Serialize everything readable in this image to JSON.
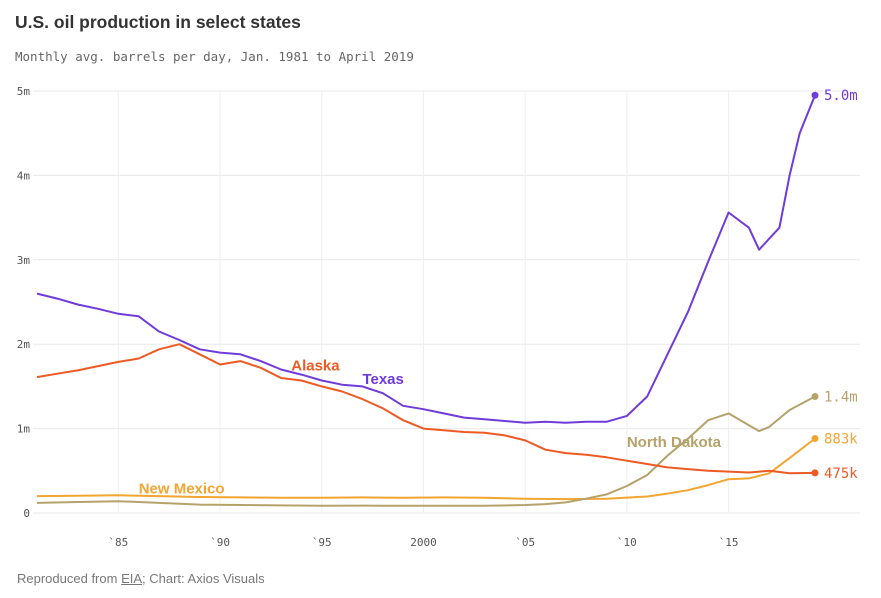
{
  "title": "U.S. oil production in select states",
  "subtitle": "Monthly avg. barrels per day, Jan. 1981 to April 2019",
  "footer": {
    "prefix": "Reproduced from ",
    "source_link": "EIA",
    "suffix": "; Chart: Axios Visuals"
  },
  "chart_data": {
    "type": "line",
    "title": "U.S. oil production in select states",
    "subtitle": "Monthly avg. barrels per day, Jan. 1981 to April 2019",
    "x_range": [
      1981.0,
      2019.25
    ],
    "y_range": [
      0,
      5000000
    ],
    "grid": true,
    "legend": "none (series labeled directly on lines)",
    "y_ticks": [
      {
        "value": 0,
        "label": "0"
      },
      {
        "value": 1000000,
        "label": "1m"
      },
      {
        "value": 2000000,
        "label": "2m"
      },
      {
        "value": 3000000,
        "label": "3m"
      },
      {
        "value": 4000000,
        "label": "4m"
      },
      {
        "value": 5000000,
        "label": "5m"
      }
    ],
    "x_ticks": [
      {
        "value": 1985,
        "label": "`85"
      },
      {
        "value": 1990,
        "label": "`90"
      },
      {
        "value": 1995,
        "label": "`95"
      },
      {
        "value": 2000,
        "label": "2000"
      },
      {
        "value": 2005,
        "label": "`05"
      },
      {
        "value": 2010,
        "label": "`10"
      },
      {
        "value": 2015,
        "label": "`15"
      }
    ],
    "series": [
      {
        "name": "Texas",
        "color": "#6f3bd9",
        "end_label": "5.0m",
        "label_year": 1997.0,
        "label_value": 1530000,
        "points": [
          [
            1981,
            2600000
          ],
          [
            1982,
            2540000
          ],
          [
            1983,
            2470000
          ],
          [
            1984,
            2420000
          ],
          [
            1985,
            2360000
          ],
          [
            1986,
            2330000
          ],
          [
            1987,
            2150000
          ],
          [
            1988,
            2050000
          ],
          [
            1989,
            1940000
          ],
          [
            1990,
            1900000
          ],
          [
            1991,
            1880000
          ],
          [
            1992,
            1800000
          ],
          [
            1993,
            1700000
          ],
          [
            1994,
            1640000
          ],
          [
            1995,
            1570000
          ],
          [
            1996,
            1520000
          ],
          [
            1997,
            1500000
          ],
          [
            1998,
            1420000
          ],
          [
            1999,
            1270000
          ],
          [
            2000,
            1230000
          ],
          [
            2001,
            1180000
          ],
          [
            2002,
            1130000
          ],
          [
            2003,
            1110000
          ],
          [
            2004,
            1090000
          ],
          [
            2005,
            1070000
          ],
          [
            2006,
            1080000
          ],
          [
            2007,
            1070000
          ],
          [
            2008,
            1080000
          ],
          [
            2009,
            1080000
          ],
          [
            2010,
            1150000
          ],
          [
            2011,
            1380000
          ],
          [
            2012,
            1880000
          ],
          [
            2013,
            2380000
          ],
          [
            2014,
            2980000
          ],
          [
            2015,
            3560000
          ],
          [
            2016,
            3380000
          ],
          [
            2016.5,
            3120000
          ],
          [
            2017,
            3250000
          ],
          [
            2017.5,
            3380000
          ],
          [
            2018,
            4000000
          ],
          [
            2018.5,
            4500000
          ],
          [
            2019.25,
            4950000
          ]
        ]
      },
      {
        "name": "Alaska",
        "color": "#ee5a24",
        "end_label": "475k",
        "label_year": 1993.5,
        "label_value": 1690000,
        "points": [
          [
            1981,
            1610000
          ],
          [
            1982,
            1650000
          ],
          [
            1983,
            1690000
          ],
          [
            1984,
            1740000
          ],
          [
            1985,
            1790000
          ],
          [
            1986,
            1830000
          ],
          [
            1987,
            1940000
          ],
          [
            1988,
            2000000
          ],
          [
            1989,
            1880000
          ],
          [
            1990,
            1760000
          ],
          [
            1991,
            1800000
          ],
          [
            1992,
            1720000
          ],
          [
            1993,
            1600000
          ],
          [
            1994,
            1570000
          ],
          [
            1995,
            1500000
          ],
          [
            1996,
            1440000
          ],
          [
            1997,
            1350000
          ],
          [
            1998,
            1240000
          ],
          [
            1999,
            1100000
          ],
          [
            2000,
            1000000
          ],
          [
            2001,
            980000
          ],
          [
            2002,
            960000
          ],
          [
            2003,
            950000
          ],
          [
            2004,
            920000
          ],
          [
            2005,
            860000
          ],
          [
            2006,
            750000
          ],
          [
            2007,
            710000
          ],
          [
            2008,
            690000
          ],
          [
            2009,
            660000
          ],
          [
            2010,
            620000
          ],
          [
            2011,
            580000
          ],
          [
            2012,
            540000
          ],
          [
            2013,
            520000
          ],
          [
            2014,
            500000
          ],
          [
            2015,
            490000
          ],
          [
            2016,
            480000
          ],
          [
            2017,
            500000
          ],
          [
            2018,
            470000
          ],
          [
            2019.25,
            475000
          ]
        ]
      },
      {
        "name": "North Dakota",
        "color": "#b5a26b",
        "end_label": "1.4m",
        "label_year": 2010.0,
        "label_value": 780000,
        "points": [
          [
            1981,
            120000
          ],
          [
            1983,
            130000
          ],
          [
            1985,
            140000
          ],
          [
            1987,
            120000
          ],
          [
            1989,
            100000
          ],
          [
            1991,
            95000
          ],
          [
            1993,
            90000
          ],
          [
            1995,
            85000
          ],
          [
            1997,
            88000
          ],
          [
            1999,
            85000
          ],
          [
            2001,
            87000
          ],
          [
            2003,
            85000
          ],
          [
            2005,
            95000
          ],
          [
            2006,
            105000
          ],
          [
            2007,
            125000
          ],
          [
            2008,
            170000
          ],
          [
            2009,
            220000
          ],
          [
            2010,
            320000
          ],
          [
            2011,
            450000
          ],
          [
            2012,
            680000
          ],
          [
            2013,
            880000
          ],
          [
            2014,
            1100000
          ],
          [
            2015,
            1180000
          ],
          [
            2016,
            1040000
          ],
          [
            2016.5,
            970000
          ],
          [
            2017,
            1020000
          ],
          [
            2018,
            1220000
          ],
          [
            2019.25,
            1380000
          ]
        ]
      },
      {
        "name": "New Mexico",
        "color": "#f2a531",
        "end_label": "883k",
        "label_year": 1986.0,
        "label_value": 230000,
        "points": [
          [
            1981,
            200000
          ],
          [
            1983,
            205000
          ],
          [
            1985,
            210000
          ],
          [
            1987,
            200000
          ],
          [
            1989,
            190000
          ],
          [
            1991,
            185000
          ],
          [
            1993,
            180000
          ],
          [
            1995,
            180000
          ],
          [
            1997,
            185000
          ],
          [
            1999,
            180000
          ],
          [
            2001,
            185000
          ],
          [
            2003,
            180000
          ],
          [
            2005,
            170000
          ],
          [
            2007,
            165000
          ],
          [
            2009,
            170000
          ],
          [
            2011,
            195000
          ],
          [
            2012,
            230000
          ],
          [
            2013,
            270000
          ],
          [
            2014,
            330000
          ],
          [
            2015,
            400000
          ],
          [
            2016,
            410000
          ],
          [
            2017,
            470000
          ],
          [
            2018,
            650000
          ],
          [
            2019.25,
            883000
          ]
        ]
      }
    ]
  }
}
